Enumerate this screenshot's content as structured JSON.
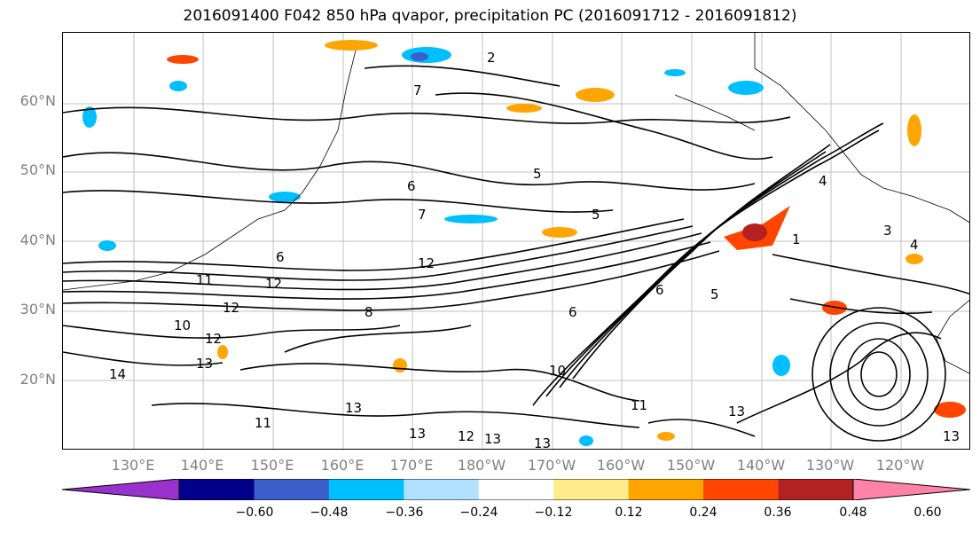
{
  "title": "2016091400 F042 850 hPa qvapor, precipitation PC (2016091712 - 2016091812)",
  "lat_labels": [
    "60°N",
    "50°N",
    "40°N",
    "30°N",
    "20°N"
  ],
  "lon_labels": [
    "130°E",
    "140°E",
    "150°E",
    "160°E",
    "170°E",
    "180°W",
    "170°W",
    "160°W",
    "150°W",
    "140°W",
    "130°W",
    "120°W"
  ],
  "contour_labels": [
    "2",
    "5",
    "6",
    "7",
    "5",
    "12",
    "11",
    "12",
    "6",
    "8",
    "10",
    "12",
    "13",
    "14",
    "13",
    "11",
    "13",
    "12",
    "13",
    "13",
    "10",
    "11",
    "13",
    "6",
    "4",
    "3",
    "4",
    "1",
    "5",
    "6",
    "7",
    "12",
    "13"
  ],
  "colorbar": {
    "colors": [
      "#9932cc",
      "#00008b",
      "#3a5fcd",
      "#00bfff",
      "#b0e2ff",
      "#ffffff",
      "#ffec8b",
      "#ffa500",
      "#ff4500",
      "#b22222",
      "#ff82ab"
    ],
    "tick_labels": [
      "−0.60",
      "−0.48",
      "−0.36",
      "−0.24",
      "−0.12",
      "0.12",
      "0.24",
      "0.36",
      "0.48",
      "0.60"
    ]
  }
}
